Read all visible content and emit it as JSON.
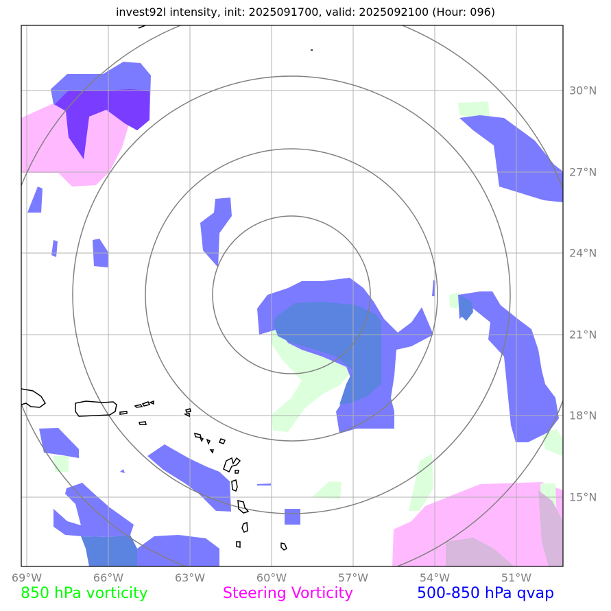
{
  "title": "invest92l intensity, init: 2025091700, valid: 2025092100 (Hour: 096)",
  "map": {
    "lon_labels": [
      "69°W",
      "66°W",
      "63°W",
      "60°W",
      "57°W",
      "54°W",
      "51°W"
    ],
    "lat_labels": [
      "30°N",
      "27°N",
      "24°N",
      "21°N",
      "18°N",
      "15°N"
    ],
    "extent": {
      "lon": [
        -69.2,
        -49.2
      ],
      "lat": [
        12.5,
        32.5
      ]
    },
    "range_rings": 4,
    "gridlines": true
  },
  "legend": [
    {
      "label": "850 hPa vorticity",
      "color": "#00ff00"
    },
    {
      "label": "Steering Vorticity",
      "color": "#ff00ff"
    },
    {
      "label": "500-850 hPa qvap",
      "color": "#0000ff"
    }
  ],
  "colors": {
    "vorticity_850": "#dcffdc",
    "steering_vorticity": "#ffbaff",
    "qvap": "#7b7bff",
    "overlap_dark": "#7a3cff",
    "overlap_green": "#5b83e0",
    "overlap_pink": "#d8b8dc",
    "grid": "#b0b0b0",
    "rings": "#808080",
    "coast": "#000000"
  }
}
